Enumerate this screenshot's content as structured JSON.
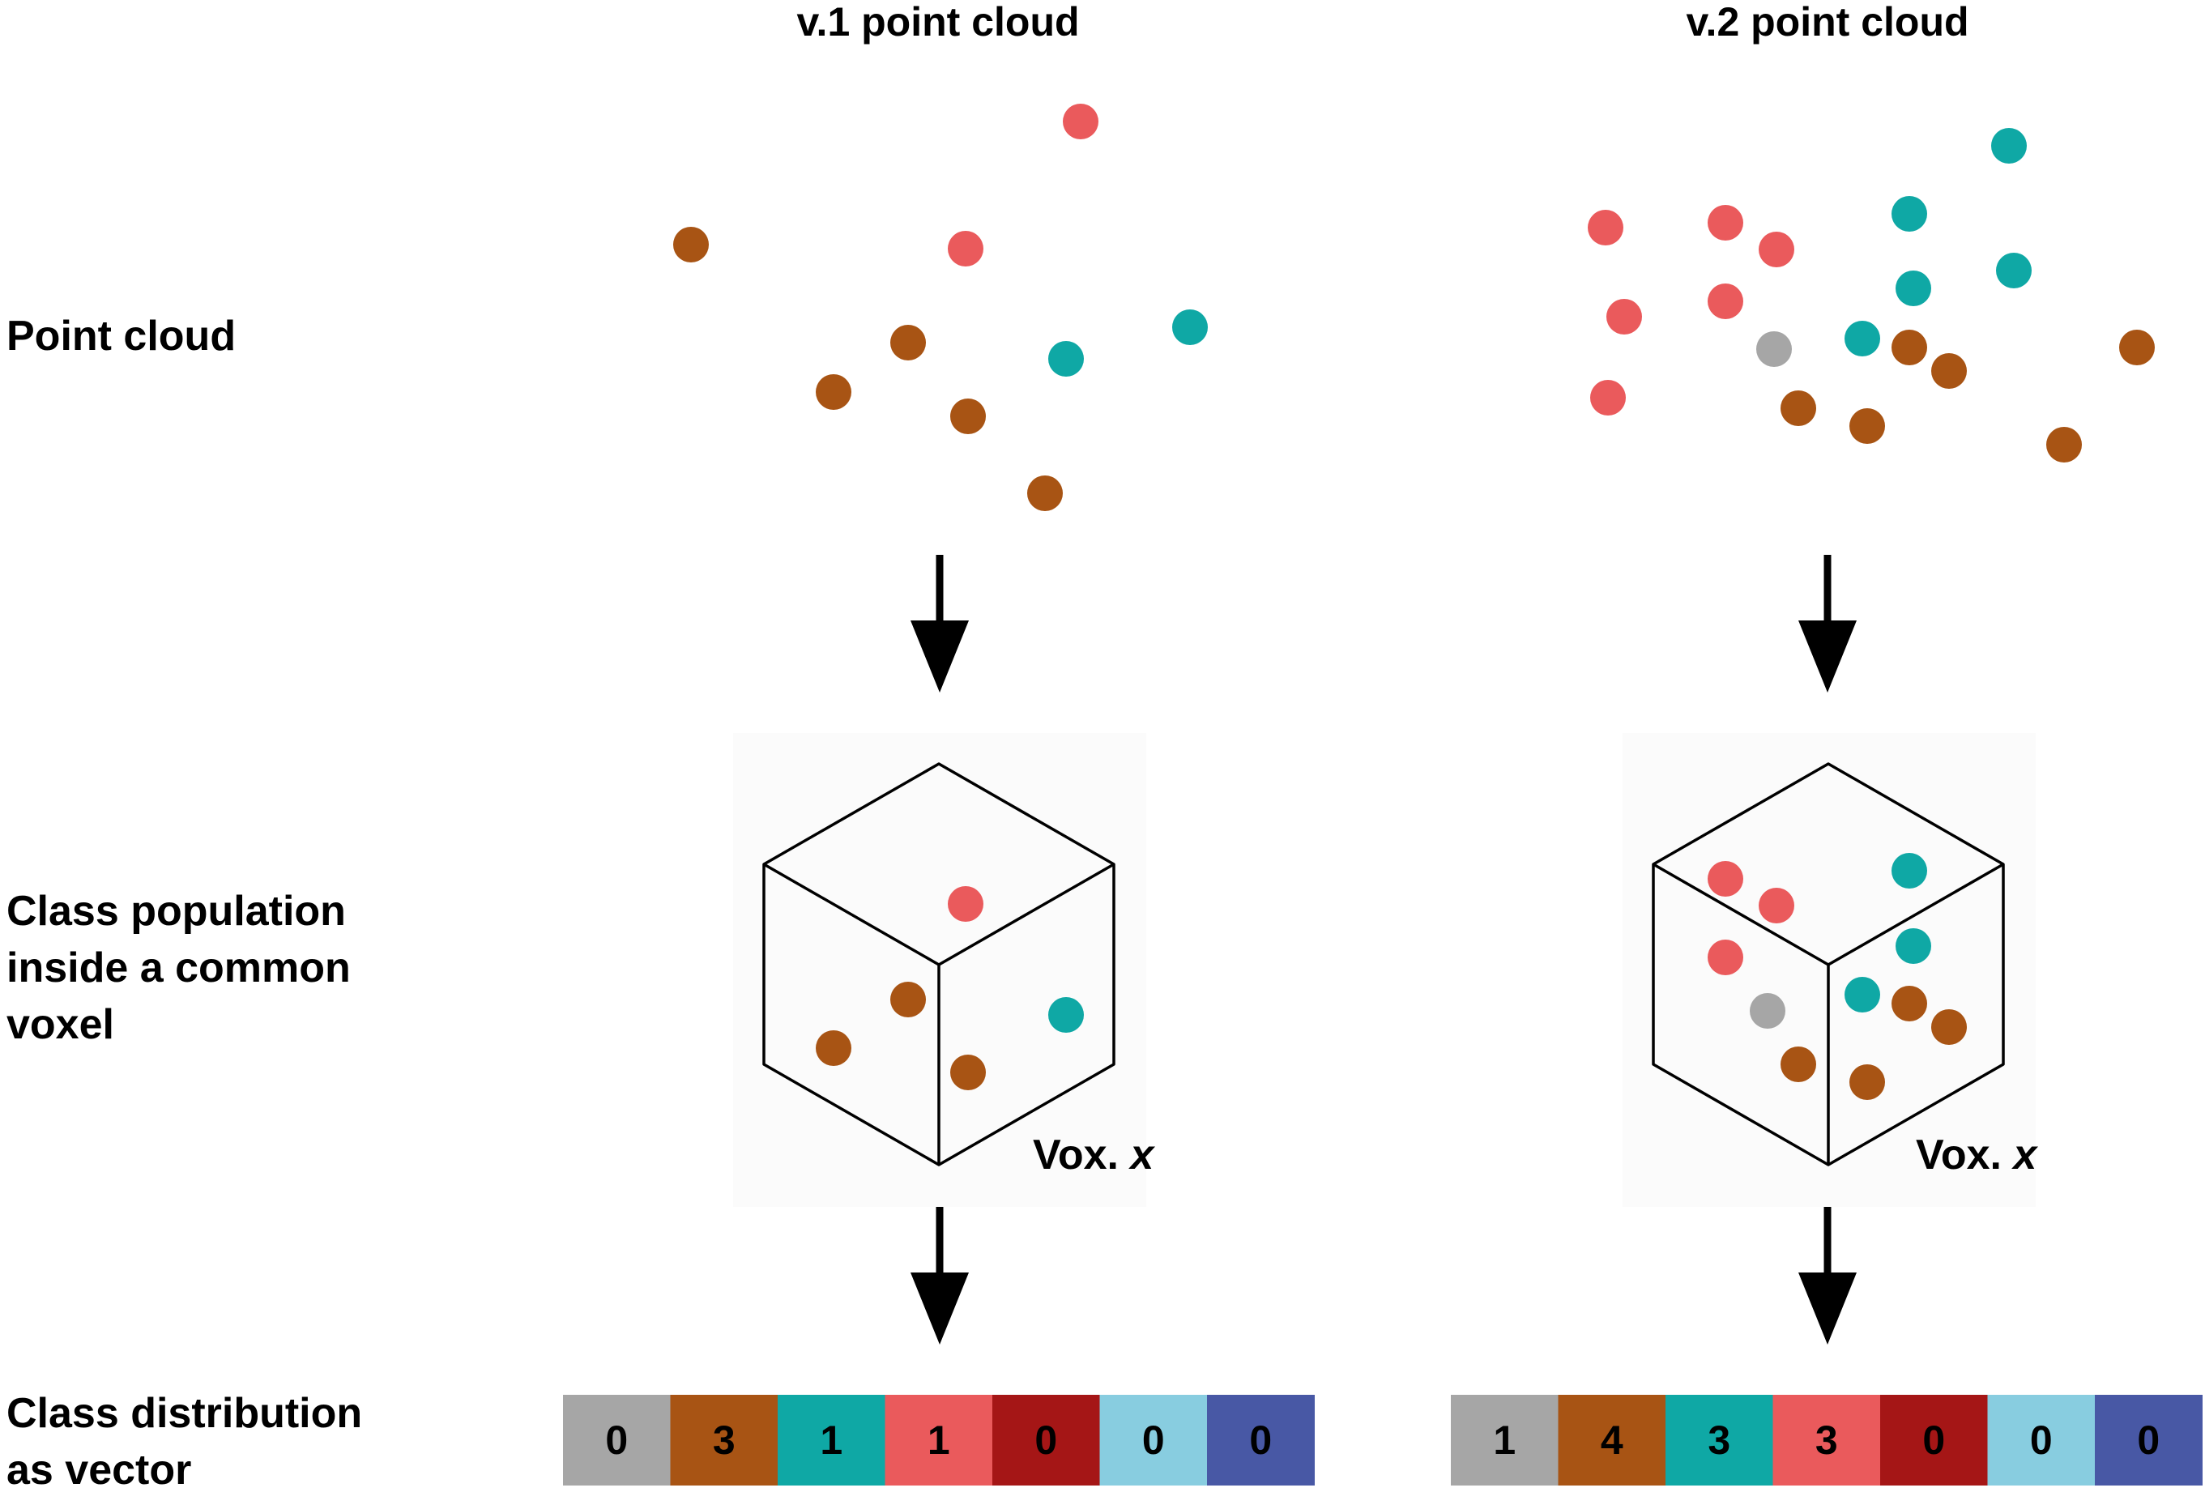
{
  "columns": [
    {
      "title": "v.1 point cloud",
      "voxel_label_prefix": "Vox. ",
      "voxel_label_var": "x",
      "vector": [
        0,
        3,
        1,
        1,
        0,
        0,
        0
      ]
    },
    {
      "title": "v.2 point cloud",
      "voxel_label_prefix": "Vox. ",
      "voxel_label_var": "x",
      "vector": [
        1,
        4,
        3,
        3,
        0,
        0,
        0
      ]
    }
  ],
  "rows": {
    "point_cloud": [
      "Point cloud"
    ],
    "voxel": [
      "Class population",
      "inside a common",
      "voxel"
    ],
    "vector": [
      "Class distribution",
      "as vector"
    ]
  },
  "class_colors": [
    "#a6a6a6",
    "#a85414",
    "#0fa8a5",
    "#ea5a5c",
    "#a51616",
    "#88cde0",
    "#4858a5"
  ],
  "point_colors": {
    "brown": "#a85414",
    "red": "#ea5a5c",
    "teal": "#0fa8a5",
    "gray": "#a6a6a6"
  }
}
